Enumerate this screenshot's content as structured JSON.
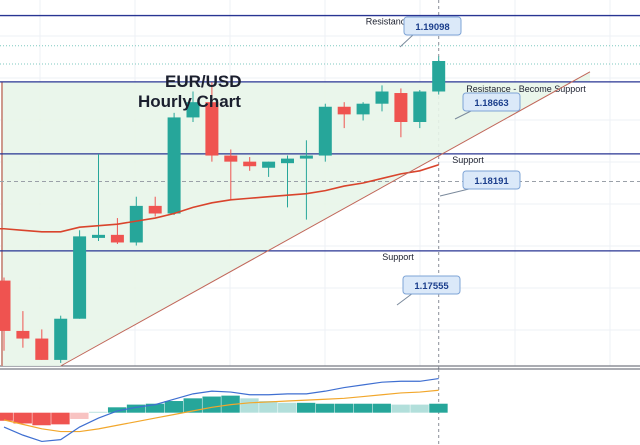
{
  "title": {
    "line1": "EUR/USD",
    "line2": "Hourly Chart"
  },
  "colors": {
    "bull": "#26a69a",
    "bear": "#ef5350",
    "level_line": "#283593",
    "triangle_fill": "#e8f5e9",
    "trendline": "#c1675a",
    "ema": "#d9442c",
    "macd_line": "#3f6fd1",
    "signal_line": "#f2a72c",
    "callout_fill": "#dbe9f9",
    "callout_stroke": "#7ea4d6"
  },
  "chart_data": {
    "type": "candlestick",
    "symbol": "EUR/USD",
    "timeframe": "1H",
    "y_range": [
      1.168,
      1.192
    ],
    "candles": [
      {
        "o": 1.1736,
        "h": 1.1738,
        "l": 1.169,
        "c": 1.1703
      },
      {
        "o": 1.1703,
        "h": 1.1716,
        "l": 1.1692,
        "c": 1.1698
      },
      {
        "o": 1.1698,
        "h": 1.1704,
        "l": 1.1684,
        "c": 1.1684
      },
      {
        "o": 1.1684,
        "h": 1.1713,
        "l": 1.1682,
        "c": 1.1711
      },
      {
        "o": 1.1711,
        "h": 1.1769,
        "l": 1.1711,
        "c": 1.1765
      },
      {
        "o": 1.1764,
        "h": 1.1819,
        "l": 1.1762,
        "c": 1.1766
      },
      {
        "o": 1.1766,
        "h": 1.1777,
        "l": 1.176,
        "c": 1.1761
      },
      {
        "o": 1.1761,
        "h": 1.1791,
        "l": 1.1759,
        "c": 1.1785
      },
      {
        "o": 1.1785,
        "h": 1.1791,
        "l": 1.1778,
        "c": 1.178
      },
      {
        "o": 1.178,
        "h": 1.1846,
        "l": 1.1779,
        "c": 1.1843
      },
      {
        "o": 1.1843,
        "h": 1.186,
        "l": 1.184,
        "c": 1.1853
      },
      {
        "o": 1.1853,
        "h": 1.1866,
        "l": 1.1814,
        "c": 1.1818
      },
      {
        "o": 1.1818,
        "h": 1.1822,
        "l": 1.1789,
        "c": 1.1814
      },
      {
        "o": 1.1814,
        "h": 1.1817,
        "l": 1.1808,
        "c": 1.1811
      },
      {
        "o": 1.181,
        "h": 1.1814,
        "l": 1.1804,
        "c": 1.1814
      },
      {
        "o": 1.1813,
        "h": 1.1818,
        "l": 1.1784,
        "c": 1.1816
      },
      {
        "o": 1.1816,
        "h": 1.1828,
        "l": 1.1776,
        "c": 1.1818
      },
      {
        "o": 1.1818,
        "h": 1.1852,
        "l": 1.1814,
        "c": 1.185
      },
      {
        "o": 1.185,
        "h": 1.1853,
        "l": 1.1836,
        "c": 1.1845
      },
      {
        "o": 1.1845,
        "h": 1.1853,
        "l": 1.1841,
        "c": 1.1852
      },
      {
        "o": 1.1852,
        "h": 1.1864,
        "l": 1.1847,
        "c": 1.186
      },
      {
        "o": 1.1859,
        "h": 1.1862,
        "l": 1.183,
        "c": 1.184
      },
      {
        "o": 1.184,
        "h": 1.1861,
        "l": 1.1836,
        "c": 1.186
      },
      {
        "o": 1.186,
        "h": 1.1883,
        "l": 1.1858,
        "c": 1.188
      }
    ],
    "ema": [
      1.177,
      1.1769,
      1.1768,
      1.1768,
      1.1771,
      1.1772,
      1.1773,
      1.1775,
      1.1777,
      1.178,
      1.1784,
      1.1787,
      1.1789,
      1.179,
      1.1791,
      1.1792,
      1.1793,
      1.1795,
      1.1798,
      1.18,
      1.1803,
      1.1806,
      1.1808,
      1.1812
    ],
    "levels": [
      {
        "name": "Resistance",
        "value": 1.19098,
        "label": "Resistance",
        "callout": "1.19098"
      },
      {
        "name": "Resistance - Become Support",
        "value": 1.18663,
        "label": "Resistance - Become Support",
        "callout": "1.18663"
      },
      {
        "name": "Support",
        "value": 1.18191,
        "label": "Support",
        "callout": "1.18191"
      },
      {
        "name": "Support",
        "value": 1.17555,
        "label": "Support",
        "callout": "1.17555"
      }
    ],
    "dotted_levels": [
      1.189,
      1.1878
    ],
    "dashed_level": 1.1801,
    "trendline": {
      "from": {
        "candle": 3,
        "price": 1.168
      },
      "to": {
        "candle": 30,
        "price": 1.1866
      }
    },
    "ascending_triangle": {
      "top": 1.18663,
      "from_candle": 0,
      "to_candle": 30
    },
    "macd": {
      "histogram": [
        -0.9,
        -1.2,
        -1.4,
        -1.3,
        -0.7,
        0.1,
        0.6,
        0.9,
        1.0,
        1.3,
        1.6,
        1.8,
        1.9,
        1.6,
        1.3,
        1.1,
        1.1,
        1.0,
        1.0,
        1.0,
        1.0,
        0.9,
        0.9,
        1.0
      ],
      "histogram_colors": [
        "bear",
        "bear",
        "bear",
        "bear",
        "bearlight",
        "bulllight",
        "bull",
        "bull",
        "bull",
        "bull",
        "bull",
        "bull",
        "bull",
        "bulllight",
        "bulllight",
        "bulllight",
        "bull",
        "bull",
        "bull",
        "bull",
        "bull",
        "bulllight",
        "bulllight",
        "bull"
      ],
      "macd_line": [
        -1.6,
        -2.5,
        -3.2,
        -3.0,
        -1.6,
        -0.6,
        0.2,
        0.6,
        0.9,
        1.5,
        2.1,
        2.4,
        2.3,
        2.0,
        2.0,
        2.1,
        2.1,
        2.4,
        2.8,
        3.1,
        3.4,
        3.5,
        3.5,
        3.8
      ],
      "signal_line": [
        -0.8,
        -1.3,
        -1.8,
        -2.1,
        -2.1,
        -1.8,
        -1.4,
        -1.0,
        -0.6,
        -0.2,
        0.2,
        0.6,
        0.9,
        1.1,
        1.2,
        1.3,
        1.4,
        1.5,
        1.6,
        1.8,
        2.0,
        2.2,
        2.3,
        2.5
      ],
      "range": [
        -3.6,
        4.2
      ]
    }
  }
}
